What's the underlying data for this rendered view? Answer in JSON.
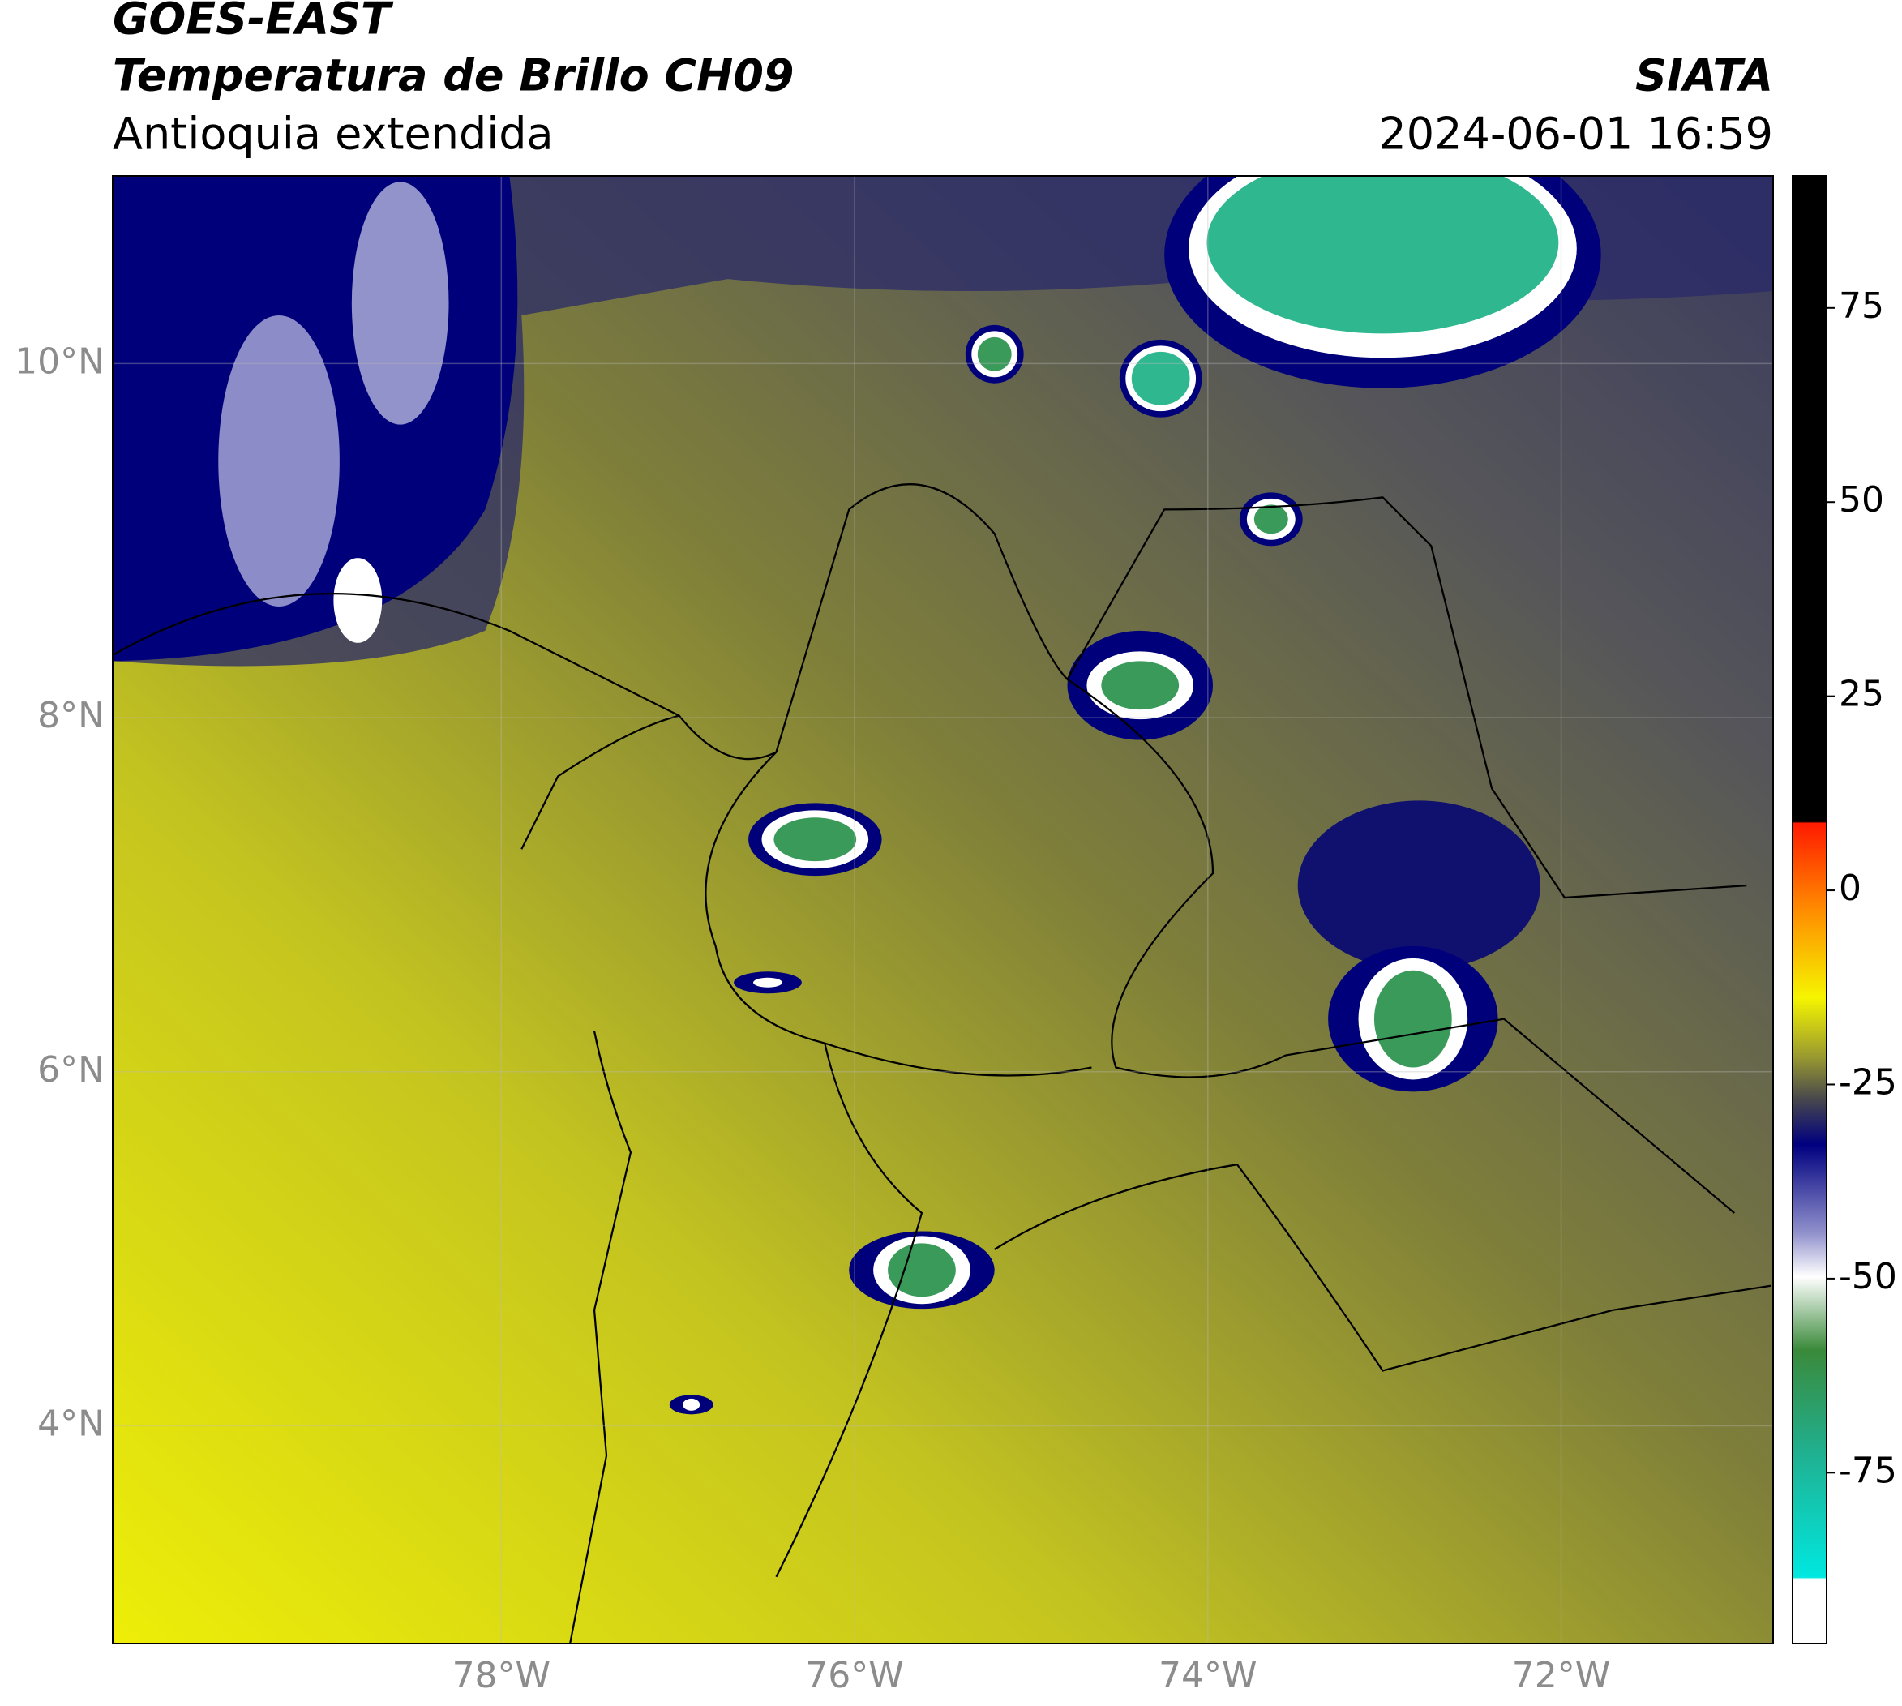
{
  "header": {
    "satellite": "GOES-EAST",
    "product": "Temperatura de Brillo CH09",
    "region": "Antioquia extendida",
    "agency": "SIATA",
    "datetime": "2024-06-01 16:59"
  },
  "map": {
    "xlim": [
      -80.2,
      -70.8
    ],
    "ylim": [
      2.77,
      11.06
    ],
    "xticks": [
      {
        "value": -78,
        "label": "78°W"
      },
      {
        "value": -76,
        "label": "76°W"
      },
      {
        "value": -74,
        "label": "74°W"
      },
      {
        "value": -72,
        "label": "72°W"
      }
    ],
    "yticks": [
      {
        "value": 10,
        "label": "10°N"
      },
      {
        "value": 8,
        "label": "8°N"
      },
      {
        "value": 6,
        "label": "6°N"
      },
      {
        "value": 4,
        "label": "4°N"
      }
    ],
    "grid": true
  },
  "colorbar": {
    "lim": [
      -97,
      92
    ],
    "ticks": [
      75,
      50,
      25,
      0,
      -25,
      -50,
      -75
    ]
  }
}
